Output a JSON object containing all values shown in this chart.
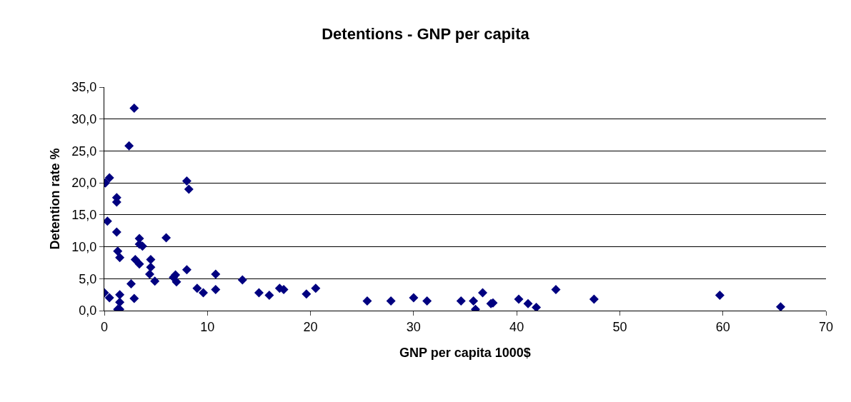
{
  "chart_data": {
    "type": "scatter",
    "title": "Detentions - GNP per capita",
    "xlabel": "GNP per capita 1000$",
    "ylabel": "Detention rate %",
    "x": [
      0.0,
      0.5,
      0.1,
      0.5,
      0.3,
      1.2,
      1.2,
      1.2,
      1.3,
      1.5,
      1.5,
      1.5,
      1.3,
      1.5,
      2.6,
      2.9,
      2.4,
      2.9,
      3.4,
      3.4,
      3.7,
      3.0,
      3.4,
      4.5,
      4.5,
      4.4,
      4.9,
      6.0,
      6.7,
      6.9,
      7.0,
      8.0,
      8.2,
      8.0,
      9.0,
      9.6,
      10.8,
      10.8,
      13.4,
      15.0,
      16.0,
      17.0,
      17.4,
      19.6,
      20.5,
      25.5,
      27.8,
      30.0,
      31.3,
      34.6,
      35.8,
      36.0,
      36.7,
      37.5,
      37.7,
      40.2,
      41.1,
      41.9,
      43.8,
      47.5,
      59.7,
      65.6
    ],
    "values": [
      2.8,
      2.0,
      20.0,
      20.8,
      14.0,
      17.7,
      17.0,
      12.3,
      9.3,
      8.3,
      2.5,
      1.3,
      0.2,
      0.2,
      4.2,
      1.9,
      25.8,
      31.7,
      11.3,
      10.4,
      10.1,
      8.0,
      7.3,
      8.0,
      6.8,
      5.7,
      4.6,
      11.4,
      5.2,
      5.6,
      4.5,
      20.3,
      19.0,
      6.4,
      3.5,
      2.8,
      5.7,
      3.3,
      4.8,
      2.8,
      2.4,
      3.5,
      3.3,
      2.6,
      3.5,
      1.5,
      1.5,
      2.0,
      1.5,
      1.5,
      1.5,
      0.2,
      2.8,
      1.1,
      1.2,
      1.8,
      1.1,
      0.5,
      3.3,
      1.8,
      2.4,
      0.6
    ],
    "color": "#000080",
    "marker": "diamond",
    "grid": "y",
    "xlim": [
      0,
      70
    ],
    "xticks": [
      0,
      10,
      20,
      30,
      40,
      50,
      60,
      70
    ],
    "ylim": [
      0,
      35
    ],
    "yticks": [
      {
        "value": 0,
        "label": "0,0"
      },
      {
        "value": 5,
        "label": "5,0"
      },
      {
        "value": 10,
        "label": "10,0"
      },
      {
        "value": 15,
        "label": "15,0"
      },
      {
        "value": 20,
        "label": "20,0"
      },
      {
        "value": 25,
        "label": "25,0"
      },
      {
        "value": 30,
        "label": "30,0"
      },
      {
        "value": 35,
        "label": "35,0"
      }
    ]
  }
}
